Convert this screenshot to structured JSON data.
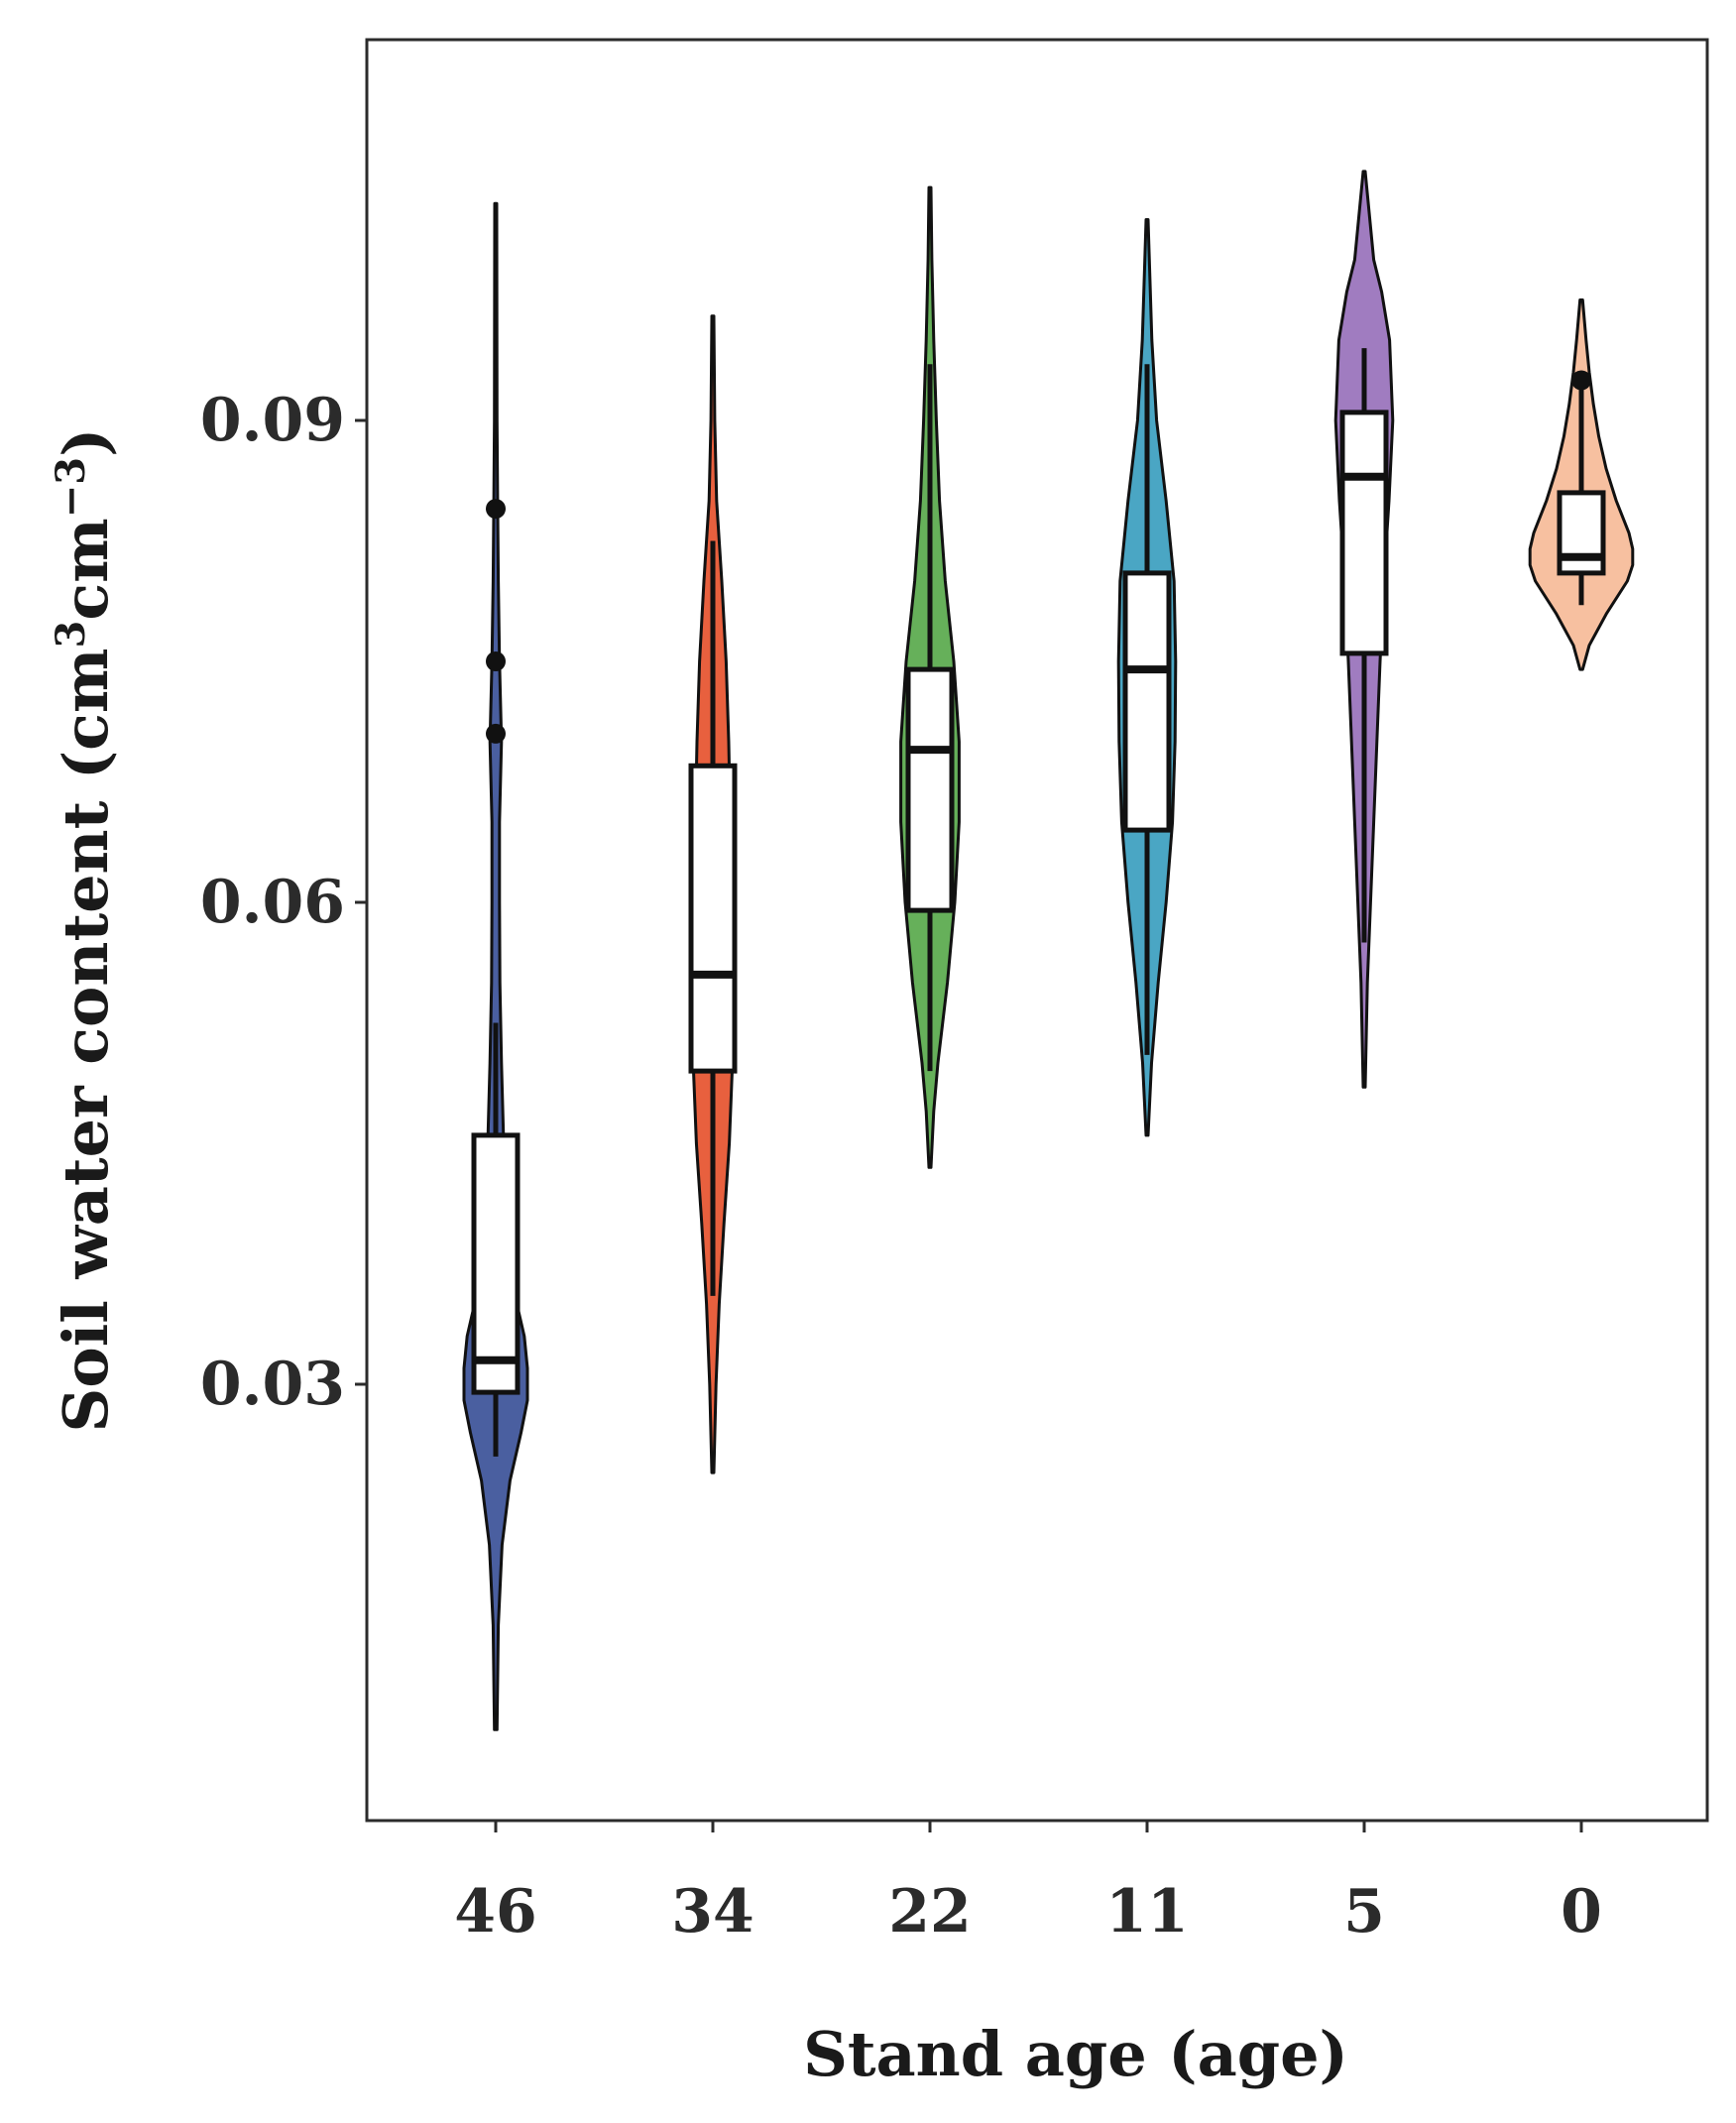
{
  "chart_data": {
    "type": "violin",
    "xlabel": "Stand age (age)",
    "ylabel": {
      "main": "Soil water content  (cm",
      "sup1": "3",
      "mid": "cm",
      "sup2": "−3",
      "end": ")"
    },
    "ylim": [
      0.002,
      0.114
    ],
    "yticks": [
      0.03,
      0.06,
      0.09
    ],
    "ytick_labels": [
      "0.03",
      "0.06",
      "0.09"
    ],
    "grid": false,
    "categories": [
      "46",
      "34",
      "22",
      "11",
      "5",
      "0"
    ],
    "groups": [
      {
        "label": "46",
        "color": "#4a5fa0",
        "min": 0.0085,
        "max": 0.1035,
        "q1": 0.0295,
        "median": 0.0315,
        "q3": 0.0455,
        "whisker_low": 0.0255,
        "whisker_high": 0.0525,
        "outliers": [
          0.0705,
          0.075,
          0.0845
        ],
        "density": [
          [
            0.0085,
            0.04
          ],
          [
            0.015,
            0.08
          ],
          [
            0.02,
            0.2
          ],
          [
            0.024,
            0.45
          ],
          [
            0.027,
            0.8
          ],
          [
            0.029,
            1.0
          ],
          [
            0.031,
            1.0
          ],
          [
            0.033,
            0.9
          ],
          [
            0.036,
            0.55
          ],
          [
            0.04,
            0.35
          ],
          [
            0.045,
            0.25
          ],
          [
            0.05,
            0.18
          ],
          [
            0.055,
            0.13
          ],
          [
            0.06,
            0.12
          ],
          [
            0.065,
            0.12
          ],
          [
            0.07,
            0.18
          ],
          [
            0.075,
            0.12
          ],
          [
            0.08,
            0.08
          ],
          [
            0.085,
            0.06
          ],
          [
            0.09,
            0.04
          ],
          [
            0.1035,
            0.03
          ]
        ]
      },
      {
        "label": "34",
        "color": "#e8603e",
        "min": 0.0245,
        "max": 0.0965,
        "q1": 0.0495,
        "median": 0.0555,
        "q3": 0.0685,
        "whisker_low": 0.0355,
        "whisker_high": 0.0825,
        "outliers": [],
        "density": [
          [
            0.0245,
            0.03
          ],
          [
            0.03,
            0.1
          ],
          [
            0.035,
            0.2
          ],
          [
            0.04,
            0.35
          ],
          [
            0.045,
            0.52
          ],
          [
            0.05,
            0.62
          ],
          [
            0.055,
            0.65
          ],
          [
            0.06,
            0.6
          ],
          [
            0.065,
            0.55
          ],
          [
            0.07,
            0.5
          ],
          [
            0.075,
            0.42
          ],
          [
            0.08,
            0.28
          ],
          [
            0.085,
            0.12
          ],
          [
            0.09,
            0.06
          ],
          [
            0.0965,
            0.03
          ]
        ]
      },
      {
        "label": "22",
        "color": "#66b05a",
        "min": 0.0435,
        "max": 0.1045,
        "q1": 0.0595,
        "median": 0.0695,
        "q3": 0.0745,
        "whisker_low": 0.0495,
        "whisker_high": 0.0935,
        "outliers": [],
        "density": [
          [
            0.0435,
            0.03
          ],
          [
            0.047,
            0.12
          ],
          [
            0.05,
            0.25
          ],
          [
            0.055,
            0.55
          ],
          [
            0.06,
            0.78
          ],
          [
            0.065,
            0.92
          ],
          [
            0.07,
            0.92
          ],
          [
            0.075,
            0.75
          ],
          [
            0.08,
            0.48
          ],
          [
            0.085,
            0.3
          ],
          [
            0.09,
            0.2
          ],
          [
            0.095,
            0.12
          ],
          [
            0.1,
            0.06
          ],
          [
            0.1045,
            0.03
          ]
        ]
      },
      {
        "label": "11",
        "color": "#4aa6c4",
        "min": 0.0455,
        "max": 0.1025,
        "q1": 0.0645,
        "median": 0.0745,
        "q3": 0.0805,
        "whisker_low": 0.0505,
        "whisker_high": 0.0935,
        "outliers": [],
        "density": [
          [
            0.0455,
            0.03
          ],
          [
            0.05,
            0.14
          ],
          [
            0.055,
            0.35
          ],
          [
            0.06,
            0.6
          ],
          [
            0.065,
            0.8
          ],
          [
            0.07,
            0.88
          ],
          [
            0.075,
            0.9
          ],
          [
            0.08,
            0.85
          ],
          [
            0.085,
            0.6
          ],
          [
            0.09,
            0.3
          ],
          [
            0.095,
            0.15
          ],
          [
            0.1025,
            0.03
          ]
        ]
      },
      {
        "label": "5",
        "color": "#a07cc0",
        "min": 0.0485,
        "max": 0.1055,
        "q1": 0.0755,
        "median": 0.0865,
        "q3": 0.0905,
        "whisker_low": 0.0575,
        "whisker_high": 0.0945,
        "outliers": [],
        "density": [
          [
            0.0485,
            0.03
          ],
          [
            0.055,
            0.1
          ],
          [
            0.06,
            0.2
          ],
          [
            0.065,
            0.3
          ],
          [
            0.07,
            0.4
          ],
          [
            0.075,
            0.5
          ],
          [
            0.08,
            0.62
          ],
          [
            0.085,
            0.78
          ],
          [
            0.09,
            0.9
          ],
          [
            0.095,
            0.8
          ],
          [
            0.098,
            0.55
          ],
          [
            0.1,
            0.3
          ],
          [
            0.1055,
            0.03
          ]
        ]
      },
      {
        "label": "0",
        "color": "#f7c0a0",
        "min": 0.0745,
        "max": 0.0975,
        "q1": 0.0805,
        "median": 0.0815,
        "q3": 0.0855,
        "whisker_low": 0.0785,
        "whisker_high": 0.0925,
        "outliers": [
          0.0925
        ],
        "density": [
          [
            0.0745,
            0.04
          ],
          [
            0.076,
            0.25
          ],
          [
            0.078,
            0.8
          ],
          [
            0.08,
            1.45
          ],
          [
            0.081,
            1.62
          ],
          [
            0.082,
            1.62
          ],
          [
            0.083,
            1.5
          ],
          [
            0.085,
            1.1
          ],
          [
            0.087,
            0.78
          ],
          [
            0.089,
            0.55
          ],
          [
            0.091,
            0.38
          ],
          [
            0.093,
            0.25
          ],
          [
            0.095,
            0.15
          ],
          [
            0.0975,
            0.04
          ]
        ]
      }
    ]
  }
}
